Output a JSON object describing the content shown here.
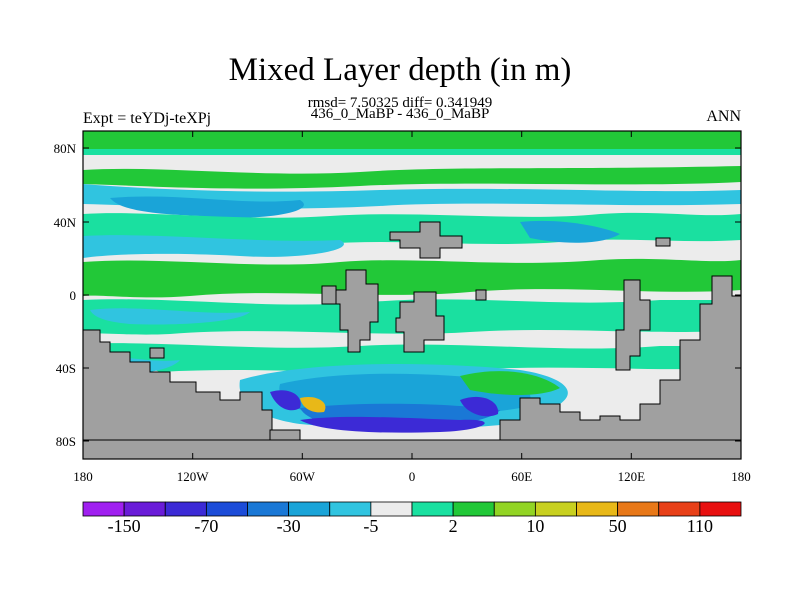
{
  "title": "Mixed Layer depth (in m)",
  "stats": "rmsd= 7.50325 diff= 0.341949",
  "case_line": "436_0_MaBP - 436_0_MaBP",
  "expt": "Expt = teYDj-teXPj",
  "season": "ANN",
  "lat_ticks": [
    "80N",
    "40N",
    "0",
    "40S",
    "80S"
  ],
  "lon_ticks": [
    "180",
    "120W",
    "60W",
    "0",
    "60E",
    "120E",
    "180"
  ],
  "colorbar": {
    "colors": [
      "#a020f0",
      "#6a1cd8",
      "#3c2ad6",
      "#1c4cd8",
      "#1a78d6",
      "#1aa4d8",
      "#30c4e0",
      "#ececec",
      "#1ae0a0",
      "#22c838",
      "#92d424",
      "#c8d020",
      "#e8b818",
      "#e87818",
      "#e84018",
      "#e81010"
    ],
    "labels": [
      "-150",
      "-70",
      "-30",
      "-5",
      "2",
      "10",
      "50",
      "110"
    ]
  },
  "colors": {
    "land": "#a0a0a0",
    "near_zero": "#ececec",
    "cyan": "#30c4e0",
    "blue": "#1aa4d8",
    "dark_blue": "#1a78d6",
    "teal": "#1ae0a0",
    "green": "#22c838",
    "purple": "#3c2ad6"
  }
}
